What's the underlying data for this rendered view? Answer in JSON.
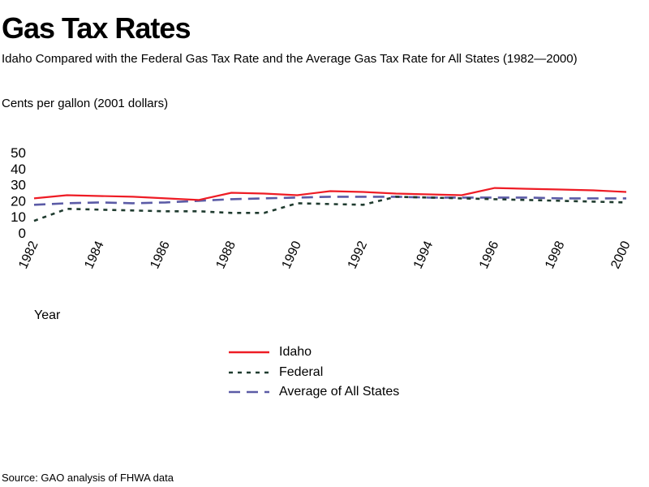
{
  "header": {
    "title": "Gas Tax Rates",
    "subtitle": "Idaho Compared with the Federal Gas Tax Rate and the Average Gas Tax Rate for All States (1982—2000)"
  },
  "footer": {
    "source": "Source: GAO analysis of FHWA data"
  },
  "chart_data": {
    "type": "line",
    "ylabel": "Cents per gallon (2001 dollars)",
    "xlabel": "Year",
    "ylim": [
      0,
      50
    ],
    "yticks": [
      0,
      10,
      20,
      30,
      40,
      50
    ],
    "xticks": [
      1982,
      1984,
      1986,
      1988,
      1990,
      1992,
      1994,
      1996,
      1998,
      2000
    ],
    "x": [
      1982,
      1983,
      1984,
      1985,
      1986,
      1987,
      1988,
      1989,
      1990,
      1991,
      1992,
      1993,
      1994,
      1995,
      1996,
      1997,
      1998,
      1999,
      2000
    ],
    "grid": false,
    "legend_position": "bottom",
    "series": [
      {
        "name": "Idaho",
        "color": "#ee1c25",
        "style": "solid",
        "values": [
          21.5,
          23.5,
          23,
          22.5,
          21.5,
          20.5,
          25,
          24.5,
          23.5,
          26,
          25.5,
          24.5,
          24,
          23.5,
          28,
          27.5,
          27,
          26.5,
          25.5
        ]
      },
      {
        "name": "Federal",
        "color": "#1f3b2f",
        "style": "dotted",
        "values": [
          7.5,
          15,
          14.5,
          14,
          13.5,
          13.5,
          12.5,
          12.5,
          18.5,
          18,
          17.5,
          22.5,
          22,
          21.5,
          21,
          20.5,
          20,
          19.5,
          19
        ]
      },
      {
        "name": "Average of All States",
        "color": "#5b5ba6",
        "style": "dashed",
        "values": [
          17.5,
          18.5,
          19,
          18.5,
          19,
          20,
          21,
          21.5,
          22,
          22.5,
          22.5,
          22.5,
          22,
          22,
          22,
          22,
          21.5,
          21.5,
          21.5
        ]
      }
    ]
  }
}
